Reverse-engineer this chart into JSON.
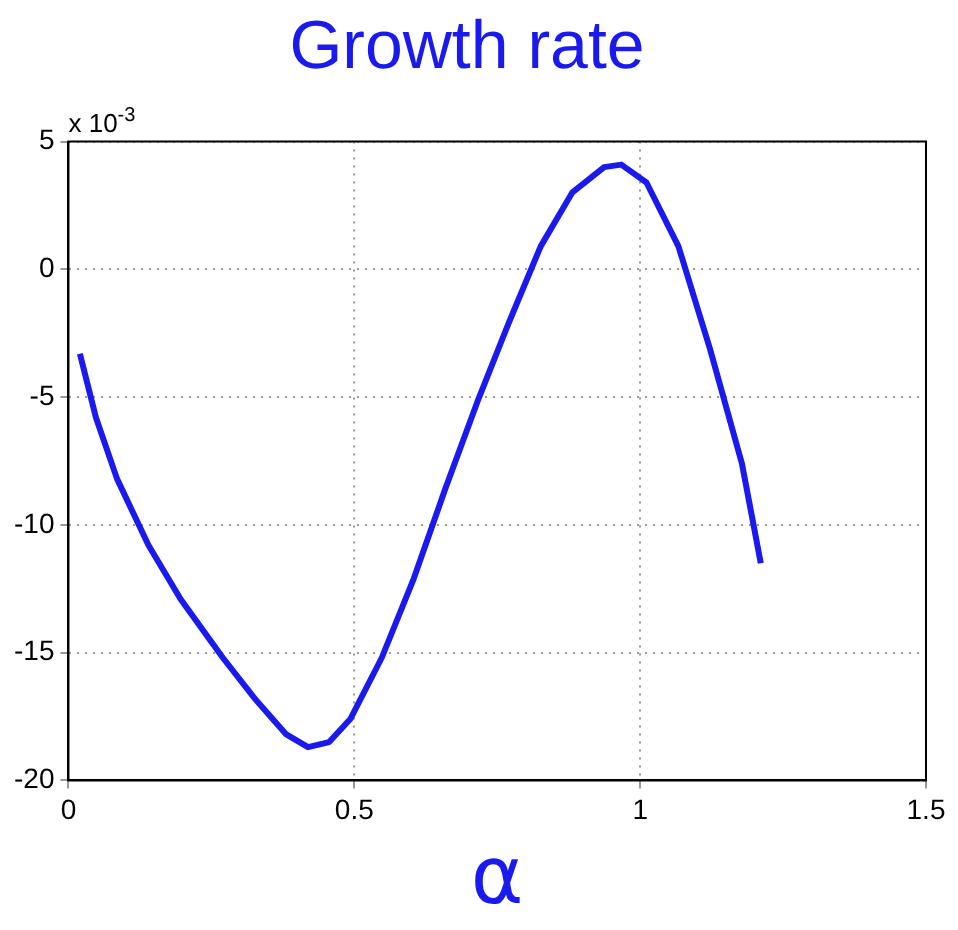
{
  "chart_data": {
    "type": "line",
    "title": "Growth rate",
    "xlabel": "α",
    "annotations": [
      "x 10$^{-3}$"
    ],
    "x": [
      0.02,
      0.048,
      0.085,
      0.14,
      0.196,
      0.27,
      0.326,
      0.381,
      0.419,
      0.456,
      0.493,
      0.548,
      0.604,
      0.659,
      0.715,
      0.77,
      0.826,
      0.881,
      0.937,
      0.967,
      1.011,
      1.067,
      1.122,
      1.178,
      1.211
    ],
    "series": [
      {
        "color": "#1a1aee",
        "values": [
          -3.3,
          -5.8,
          -8.2,
          -10.8,
          -12.9,
          -15.2,
          -16.8,
          -18.2,
          -18.7,
          -18.5,
          -17.6,
          -15.2,
          -12.1,
          -8.6,
          -5.2,
          -2.1,
          0.9,
          3.0,
          4.0,
          4.1,
          3.4,
          0.9,
          -3.1,
          -7.6,
          -11.5
        ]
      }
    ],
    "xlim": [
      0,
      1.5
    ],
    "xticks": [
      0,
      0.5,
      1,
      1.5
    ],
    "ylim": [
      -20,
      5
    ],
    "yticks": [
      -20,
      -15,
      -10,
      -5,
      0,
      5
    ],
    "grid": true,
    "legend": false,
    "marker": "none",
    "line_style": "solid"
  }
}
